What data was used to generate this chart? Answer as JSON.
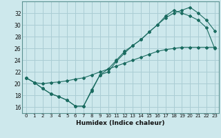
{
  "xlabel": "Humidex (Indice chaleur)",
  "xlim": [
    -0.5,
    23.5
  ],
  "ylim": [
    15.0,
    34.0
  ],
  "xticks": [
    0,
    1,
    2,
    3,
    4,
    5,
    6,
    7,
    8,
    9,
    10,
    11,
    12,
    13,
    14,
    15,
    16,
    17,
    18,
    19,
    20,
    21,
    22,
    23
  ],
  "yticks": [
    16,
    18,
    20,
    22,
    24,
    26,
    28,
    30,
    32
  ],
  "bg_color": "#cde8ec",
  "grid_color": "#aacdd4",
  "line_color": "#1a6b60",
  "line1_x": [
    0,
    1,
    2,
    3,
    4,
    5,
    6,
    7,
    8,
    9,
    10,
    11,
    12,
    13,
    14,
    15,
    16,
    17,
    18,
    19,
    20,
    21,
    22,
    23
  ],
  "line1_y": [
    21.0,
    20.2,
    19.2,
    18.3,
    17.8,
    17.2,
    16.2,
    16.2,
    18.8,
    21.5,
    22.0,
    23.8,
    25.2,
    26.5,
    27.5,
    28.8,
    30.0,
    31.2,
    32.0,
    32.5,
    33.0,
    32.0,
    30.8,
    29.0
  ],
  "line2_x": [
    0,
    1,
    2,
    3,
    4,
    5,
    6,
    7,
    8,
    9,
    10,
    11,
    12,
    13,
    14,
    15,
    16,
    17,
    18,
    19,
    20,
    21,
    22,
    23
  ],
  "line2_y": [
    21.0,
    20.2,
    19.2,
    18.3,
    17.8,
    17.2,
    16.2,
    16.2,
    19.0,
    21.5,
    22.5,
    24.0,
    25.5,
    26.5,
    27.5,
    28.8,
    30.0,
    31.5,
    32.5,
    32.0,
    31.5,
    30.8,
    29.5,
    26.0
  ],
  "line3_x": [
    0,
    1,
    2,
    3,
    4,
    5,
    6,
    7,
    8,
    9,
    10,
    11,
    12,
    13,
    14,
    15,
    16,
    17,
    18,
    19,
    20,
    21,
    22,
    23
  ],
  "line3_y": [
    21.0,
    20.2,
    20.0,
    20.2,
    20.3,
    20.5,
    20.8,
    21.0,
    21.5,
    22.0,
    22.5,
    23.0,
    23.5,
    24.0,
    24.5,
    25.0,
    25.5,
    25.8,
    26.0,
    26.2,
    26.2,
    26.2,
    26.2,
    26.2
  ]
}
